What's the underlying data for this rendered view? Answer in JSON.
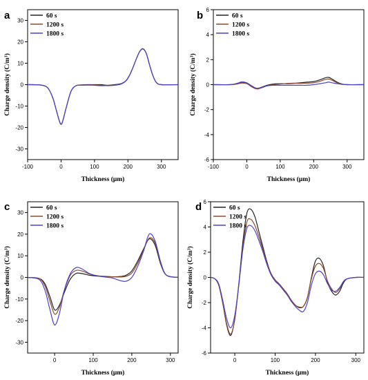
{
  "colors": {
    "60 s": "#222222",
    "1200 s": "#8B4A2B",
    "1800 s": "#4B3FD0"
  },
  "chart_data": [
    {
      "panel": "a",
      "type": "line",
      "xlabel": "Thickness (μm)",
      "ylabel": "Charge density (C/m³)",
      "xlim": [
        -100,
        350
      ],
      "ylim": [
        -35,
        35
      ],
      "xticks": [
        -100,
        0,
        100,
        200,
        300
      ],
      "yticks": [
        -30,
        -20,
        -10,
        0,
        10,
        20,
        30
      ],
      "legend_position": "top-left",
      "series": [
        {
          "name": "60 s",
          "x": [
            -100,
            -60,
            -40,
            -25,
            -15,
            -5,
            0,
            5,
            15,
            30,
            45,
            60,
            80,
            100,
            120,
            140,
            160,
            180,
            195,
            205,
            215,
            225,
            235,
            245,
            255,
            265,
            275,
            285,
            300,
            350
          ],
          "y": [
            0,
            -0.2,
            -1.5,
            -6,
            -11.5,
            -17,
            -18.5,
            -17,
            -11,
            -3,
            -0.5,
            -0.1,
            0,
            0,
            0,
            -0.3,
            0,
            0.5,
            2,
            4.5,
            8,
            12,
            15.5,
            16.8,
            14.5,
            9,
            4,
            1,
            0,
            0
          ]
        },
        {
          "name": "1200 s",
          "x": [
            -100,
            -60,
            -40,
            -25,
            -15,
            -5,
            0,
            5,
            15,
            30,
            45,
            60,
            80,
            100,
            120,
            140,
            160,
            180,
            195,
            205,
            215,
            225,
            235,
            245,
            255,
            265,
            275,
            285,
            300,
            350
          ],
          "y": [
            0,
            -0.2,
            -1.5,
            -6,
            -11.5,
            -17,
            -18.6,
            -17,
            -11,
            -3,
            -0.5,
            -0.2,
            -0.1,
            -0.1,
            -0.3,
            -0.5,
            -0.2,
            0.4,
            2,
            4.5,
            8,
            12,
            15.5,
            16.7,
            14.5,
            9,
            4,
            1,
            0,
            0
          ]
        },
        {
          "name": "1800 s",
          "x": [
            -100,
            -60,
            -40,
            -25,
            -15,
            -5,
            0,
            5,
            15,
            30,
            45,
            60,
            80,
            100,
            120,
            140,
            160,
            180,
            195,
            205,
            215,
            225,
            235,
            245,
            255,
            265,
            275,
            285,
            300,
            350
          ],
          "y": [
            0,
            -0.2,
            -1.5,
            -6,
            -11.5,
            -17,
            -18.4,
            -17,
            -11,
            -3,
            -0.5,
            -0.3,
            -0.2,
            -0.3,
            -0.5,
            -0.4,
            -0.3,
            0.3,
            1.9,
            4.4,
            8,
            12,
            15.4,
            16.6,
            14.4,
            9,
            4,
            1,
            0,
            0
          ]
        }
      ]
    },
    {
      "panel": "b",
      "type": "line",
      "xlabel": "Thickness (μm)",
      "ylabel": "Charge density (C/m³)",
      "xlim": [
        -100,
        350
      ],
      "ylim": [
        -6,
        6
      ],
      "xticks": [
        -100,
        0,
        100,
        200,
        300
      ],
      "yticks": [
        -6,
        -4,
        -2,
        0,
        2,
        4,
        6
      ],
      "legend_position": "top-left",
      "series": [
        {
          "name": "60 s",
          "x": [
            -100,
            -50,
            -30,
            -15,
            0,
            15,
            30,
            45,
            60,
            80,
            100,
            120,
            140,
            160,
            180,
            200,
            220,
            235,
            245,
            255,
            270,
            285,
            300,
            350
          ],
          "y": [
            0,
            0,
            0.05,
            0.15,
            0.1,
            -0.15,
            -0.3,
            -0.2,
            -0.05,
            0.05,
            0.08,
            0.08,
            0.1,
            0.15,
            0.2,
            0.25,
            0.4,
            0.55,
            0.58,
            0.45,
            0.2,
            0.05,
            0,
            0
          ]
        },
        {
          "name": "1200 s",
          "x": [
            -100,
            -50,
            -30,
            -15,
            0,
            15,
            30,
            45,
            60,
            80,
            100,
            120,
            140,
            160,
            180,
            200,
            220,
            235,
            245,
            255,
            270,
            285,
            300,
            350
          ],
          "y": [
            0,
            0,
            0.05,
            0.12,
            0.08,
            -0.18,
            -0.35,
            -0.25,
            -0.1,
            0,
            0.05,
            0.1,
            0.12,
            0.1,
            0.12,
            0.15,
            0.28,
            0.42,
            0.45,
            0.35,
            0.15,
            0.04,
            0,
            0
          ]
        },
        {
          "name": "1800 s",
          "x": [
            -100,
            -50,
            -30,
            -15,
            0,
            15,
            30,
            45,
            60,
            80,
            100,
            120,
            140,
            160,
            180,
            200,
            220,
            235,
            245,
            255,
            270,
            285,
            300,
            350
          ],
          "y": [
            0,
            0,
            0.1,
            0.22,
            0.15,
            -0.1,
            -0.3,
            -0.22,
            -0.1,
            -0.05,
            -0.05,
            -0.05,
            -0.05,
            -0.05,
            -0.05,
            0,
            0.08,
            0.15,
            0.2,
            0.15,
            0.08,
            0.02,
            0,
            0
          ]
        }
      ]
    },
    {
      "panel": "c",
      "type": "line",
      "xlabel": "Thickness (μm)",
      "ylabel": "Charge density (C/m³)",
      "xlim": [
        -70,
        320
      ],
      "ylim": [
        -35,
        35
      ],
      "xticks": [
        0,
        100,
        200,
        300
      ],
      "yticks": [
        -30,
        -20,
        -10,
        0,
        10,
        20,
        30
      ],
      "legend_position": "top-left",
      "series": [
        {
          "name": "60 s",
          "x": [
            -70,
            -40,
            -25,
            -12,
            0,
            12,
            25,
            40,
            55,
            70,
            90,
            110,
            130,
            150,
            170,
            185,
            200,
            215,
            230,
            245,
            260,
            275,
            290,
            320
          ],
          "y": [
            0,
            -0.5,
            -3,
            -9,
            -15,
            -13,
            -7,
            -1,
            1.8,
            1.8,
            1,
            0.6,
            0.4,
            0.3,
            0.4,
            1,
            3,
            7.5,
            13,
            17.8,
            15,
            6,
            1,
            0
          ]
        },
        {
          "name": "1200 s",
          "x": [
            -70,
            -40,
            -25,
            -12,
            0,
            12,
            25,
            40,
            55,
            70,
            90,
            110,
            130,
            150,
            170,
            185,
            200,
            215,
            230,
            245,
            260,
            275,
            290,
            320
          ],
          "y": [
            0,
            -0.5,
            -4,
            -11,
            -17,
            -14,
            -6,
            0.8,
            3.2,
            3,
            1.6,
            0.8,
            0.5,
            0.3,
            0.2,
            0.5,
            2,
            6.5,
            12.5,
            18.2,
            16,
            6.5,
            1,
            0
          ]
        },
        {
          "name": "1800 s",
          "x": [
            -70,
            -40,
            -25,
            -12,
            0,
            12,
            25,
            40,
            55,
            70,
            90,
            110,
            130,
            150,
            170,
            185,
            200,
            215,
            230,
            245,
            260,
            275,
            290,
            320
          ],
          "y": [
            0,
            -1,
            -6,
            -15,
            -22,
            -17,
            -6,
            1.5,
            4.5,
            4,
            1.8,
            0.7,
            0.2,
            -0.3,
            -1.5,
            -1.8,
            0,
            5,
            12,
            20,
            17,
            7,
            1,
            0
          ]
        }
      ]
    },
    {
      "panel": "d",
      "type": "line",
      "xlabel": "Thickness (μm)",
      "ylabel": "Charge density (C/m³)",
      "xlim": [
        -60,
        320
      ],
      "ylim": [
        -6,
        6
      ],
      "xticks": [
        0,
        100,
        200,
        300
      ],
      "yticks": [
        -6,
        -4,
        -2,
        0,
        2,
        4,
        6
      ],
      "legend_position": "top-left",
      "series": [
        {
          "name": "60 s",
          "x": [
            -60,
            -50,
            -40,
            -30,
            -20,
            -10,
            0,
            10,
            20,
            30,
            40,
            50,
            60,
            70,
            80,
            90,
            100,
            110,
            120,
            130,
            140,
            150,
            160,
            170,
            180,
            190,
            200,
            210,
            220,
            230,
            240,
            250,
            260,
            270,
            280,
            300,
            320
          ],
          "y": [
            0,
            -0.1,
            -0.6,
            -2,
            -3.8,
            -4.6,
            -3.3,
            -0.5,
            2.8,
            5.1,
            5.4,
            4.8,
            3.6,
            2.4,
            1.2,
            0.3,
            -0.2,
            -0.6,
            -0.9,
            -1.3,
            -1.8,
            -2.2,
            -2.4,
            -2.3,
            -1.6,
            0,
            1.3,
            1.5,
            0.9,
            -0.4,
            -1.1,
            -1.4,
            -1.1,
            -0.4,
            -0.1,
            0,
            0
          ]
        },
        {
          "name": "1200 s",
          "x": [
            -60,
            -50,
            -40,
            -30,
            -20,
            -10,
            0,
            10,
            20,
            30,
            40,
            50,
            60,
            70,
            80,
            90,
            100,
            110,
            120,
            130,
            140,
            150,
            160,
            170,
            180,
            190,
            200,
            210,
            220,
            230,
            240,
            250,
            260,
            270,
            280,
            300,
            320
          ],
          "y": [
            0,
            -0.1,
            -0.6,
            -2,
            -3.7,
            -4.5,
            -3.3,
            -0.6,
            2.4,
            4.4,
            4.6,
            4.1,
            3.2,
            2.2,
            1.1,
            0.3,
            -0.2,
            -0.5,
            -0.9,
            -1.3,
            -1.8,
            -2.2,
            -2.35,
            -2.3,
            -1.6,
            -0.1,
            0.9,
            1.1,
            0.7,
            -0.3,
            -0.9,
            -1.2,
            -0.9,
            -0.3,
            -0.1,
            0,
            0
          ]
        },
        {
          "name": "1800 s",
          "x": [
            -60,
            -50,
            -40,
            -30,
            -20,
            -10,
            0,
            10,
            20,
            30,
            40,
            50,
            60,
            70,
            80,
            90,
            100,
            110,
            120,
            130,
            140,
            150,
            160,
            170,
            180,
            190,
            200,
            210,
            220,
            230,
            240,
            250,
            260,
            270,
            280,
            300,
            320
          ],
          "y": [
            0,
            -0.1,
            -0.5,
            -1.8,
            -3.3,
            -4.0,
            -3.0,
            -0.6,
            2.2,
            3.9,
            4.1,
            3.7,
            2.9,
            2.0,
            1.0,
            0.2,
            -0.3,
            -0.6,
            -1.0,
            -1.4,
            -1.9,
            -2.3,
            -2.6,
            -2.7,
            -2.0,
            -0.6,
            0.3,
            0.5,
            0.2,
            -0.5,
            -1.0,
            -1.1,
            -0.8,
            -0.3,
            -0.1,
            0,
            0
          ]
        }
      ]
    }
  ]
}
